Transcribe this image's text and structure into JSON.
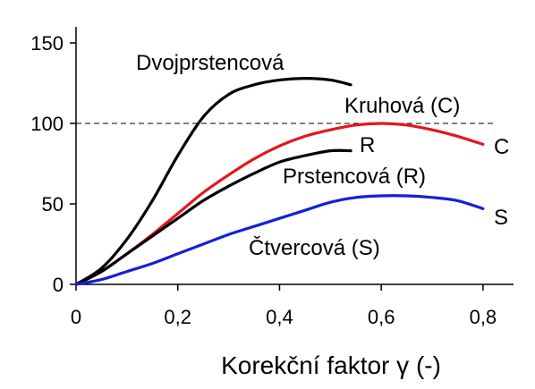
{
  "chart_data": {
    "type": "line",
    "xlabel": "Korekční faktor γ (-)",
    "ylabel": "",
    "xlim": [
      0,
      0.86
    ],
    "ylim": [
      0,
      160
    ],
    "x_ticks": [
      0,
      0.2,
      0.4,
      0.6,
      0.8
    ],
    "x_tick_labels": [
      "0",
      "0,2",
      "0,4",
      "0,6",
      "0,8"
    ],
    "y_ticks": [
      0,
      50,
      100,
      150
    ],
    "y_tick_labels": [
      "0",
      "50",
      "100",
      "150"
    ],
    "reference_line": {
      "y": 100,
      "style": "dashed"
    },
    "grid": false,
    "series": [
      {
        "name": "Dvojprstencová",
        "color": "#000000",
        "x": [
          0,
          0.05,
          0.1,
          0.15,
          0.2,
          0.25,
          0.3,
          0.35,
          0.4,
          0.45,
          0.5,
          0.54
        ],
        "y": [
          0,
          10,
          28,
          52,
          80,
          104,
          118,
          124,
          127,
          128,
          127,
          124
        ]
      },
      {
        "name": "Kruhová (C)",
        "end_label": "C",
        "color": "#e8141c",
        "x": [
          0,
          0.05,
          0.1,
          0.15,
          0.2,
          0.25,
          0.3,
          0.35,
          0.4,
          0.45,
          0.5,
          0.55,
          0.6,
          0.65,
          0.7,
          0.75,
          0.8
        ],
        "y": [
          0,
          8,
          19,
          31,
          44,
          57,
          68,
          78,
          86,
          92,
          96,
          99,
          100,
          99,
          96,
          92,
          87
        ]
      },
      {
        "name": "Prstencová (R)",
        "end_label": "R",
        "color": "#000000",
        "x": [
          0,
          0.05,
          0.1,
          0.15,
          0.2,
          0.25,
          0.3,
          0.35,
          0.4,
          0.45,
          0.5,
          0.54
        ],
        "y": [
          0,
          8,
          19,
          30,
          41,
          52,
          61,
          69,
          76,
          80,
          83,
          83
        ]
      },
      {
        "name": "Čtvercová (S)",
        "end_label": "S",
        "color": "#1420d8",
        "x": [
          0,
          0.05,
          0.1,
          0.15,
          0.2,
          0.25,
          0.3,
          0.35,
          0.4,
          0.45,
          0.5,
          0.55,
          0.6,
          0.65,
          0.7,
          0.75,
          0.8
        ],
        "y": [
          0,
          3,
          8,
          13,
          19,
          25,
          31,
          36,
          41,
          46,
          51,
          54,
          55,
          55,
          54,
          52,
          47
        ]
      }
    ],
    "annotations": {
      "dvoj": "Dvojprstencová",
      "kruh": "Kruhová (C)",
      "prst": "Prstencová (R)",
      "ctv": "Čtvercová (S)",
      "end_c": "C",
      "end_r": "R",
      "end_s": "S"
    }
  }
}
